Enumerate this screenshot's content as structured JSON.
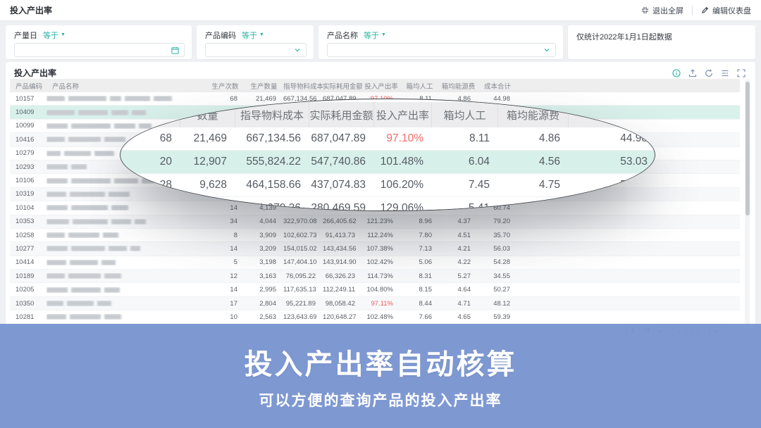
{
  "topbar": {
    "title": "投入产出率",
    "exit_fullscreen": "退出全屏",
    "edit_dashboard": "编辑仪表盘"
  },
  "filters": {
    "f1_label": "产量日",
    "f1_op": "等于",
    "f2_label": "产品编码",
    "f2_op": "等于",
    "f3_label": "产品名称",
    "f3_op": "等于",
    "note": "仅统计2022年1月1日起数据"
  },
  "panel": {
    "title": "投入产出率"
  },
  "table": {
    "headers": [
      "产品编码",
      "产品名称",
      "生产次数",
      "生产数量",
      "指导物料成本",
      "实际耗用金额",
      "投入产出率",
      "箱均人工",
      "箱均能源费",
      "成本合计",
      ""
    ],
    "rows": [
      {
        "code": "10157",
        "name_blocks": [
          26,
          54,
          16,
          36,
          26
        ],
        "cells": [
          "68",
          "21,469",
          "667,134.56",
          "687,047.89",
          "97.10%",
          "8.11",
          "4.86",
          "44.98"
        ],
        "ratio_red": true
      },
      {
        "code": "10409",
        "name_blocks": [
          40,
          42,
          24,
          20
        ],
        "cells": [
          "20",
          "12,907",
          "555,824.22",
          "547,740.86",
          "101.48%",
          "6.04",
          "4.56",
          "53.03"
        ],
        "selected": true
      },
      {
        "code": "10099",
        "name_blocks": [
          30,
          56,
          30,
          18
        ],
        "cells": [
          "28",
          "9,628",
          "464,158.66",
          "437,074.83",
          "106.20%",
          "7.45",
          "4.75",
          "57.60"
        ]
      },
      {
        "code": "10416",
        "name_blocks": [
          26,
          46,
          30
        ],
        "cells": [
          "",
          "4,163",
          "361,979.36",
          "280,469.59",
          "129.06%",
          "5.41",
          "",
          ""
        ]
      },
      {
        "code": "10279",
        "name_blocks": [
          20,
          38,
          28
        ],
        "cells": [
          "",
          "",
          "",
          "",
          "",
          "",
          "",
          ""
        ]
      },
      {
        "code": "10293",
        "name_blocks": [
          30,
          22
        ],
        "cells": [
          "",
          "",
          "",
          "",
          "",
          "",
          "",
          ""
        ]
      },
      {
        "code": "10106",
        "name_blocks": [
          30,
          56,
          34,
          18
        ],
        "cells": [
          "",
          "",
          "",
          "",
          "",
          "",
          "",
          ""
        ]
      },
      {
        "code": "10319",
        "name_blocks": [
          28,
          50,
          30
        ],
        "cells": [
          "",
          "",
          "",
          "",
          "",
          "",
          "",
          ""
        ]
      },
      {
        "code": "10104",
        "name_blocks": [
          30,
          52,
          24
        ],
        "cells": [
          "14",
          "4,139",
          "",
          "",
          "",
          "",
          "",
          "60.74"
        ]
      },
      {
        "code": "10353",
        "name_blocks": [
          32,
          50,
          28,
          16
        ],
        "cells": [
          "34",
          "4,044",
          "322,970.08",
          "266,405.62",
          "121.23%",
          "8.96",
          "4.37",
          "79.20"
        ]
      },
      {
        "code": "10258",
        "name_blocks": [
          26,
          44,
          22
        ],
        "cells": [
          "8",
          "3,909",
          "102,602.73",
          "91,413.73",
          "112.24%",
          "7.80",
          "4.51",
          "35.70"
        ]
      },
      {
        "code": "10277",
        "name_blocks": [
          30,
          48,
          26,
          14
        ],
        "cells": [
          "14",
          "3,209",
          "154,015.02",
          "143,434.56",
          "107.38%",
          "7.13",
          "4.21",
          "56.03"
        ]
      },
      {
        "code": "10414",
        "name_blocks": [
          28,
          40,
          20
        ],
        "cells": [
          "5",
          "3,198",
          "147,404.10",
          "143,914.90",
          "102.42%",
          "5.06",
          "4.22",
          "54.28"
        ]
      },
      {
        "code": "10189",
        "name_blocks": [
          26,
          46,
          24
        ],
        "cells": [
          "12",
          "3,163",
          "76,095.22",
          "66,326.23",
          "114.73%",
          "8.31",
          "5.27",
          "34.55"
        ]
      },
      {
        "code": "10205",
        "name_blocks": [
          30,
          42,
          22
        ],
        "cells": [
          "14",
          "2,995",
          "117,635.13",
          "112,249.11",
          "104.80%",
          "8.15",
          "4.64",
          "50.27"
        ]
      },
      {
        "code": "10350",
        "name_blocks": [
          24,
          38,
          20
        ],
        "cells": [
          "17",
          "2,804",
          "95,221.89",
          "98,058.42",
          "97.11%",
          "8.44",
          "4.71",
          "48.12"
        ],
        "ratio_red": true
      },
      {
        "code": "10281",
        "name_blocks": [
          28,
          44,
          24
        ],
        "cells": [
          "10",
          "2,563",
          "123,643.69",
          "120,648.27",
          "102.48%",
          "7.66",
          "4.65",
          "59.39"
        ]
      }
    ]
  },
  "lens": {
    "headers": [
      "",
      "数量",
      "指导物料成本",
      "实际耗用金额",
      "投入产出率",
      "箱均人工",
      "箱均能源费",
      ""
    ],
    "rows": [
      {
        "cells": [
          "68",
          "21,469",
          "667,134.56",
          "687,047.89",
          "97.10%",
          "8.11",
          "4.86",
          "44.98"
        ],
        "ratio_red": true
      },
      {
        "cells": [
          "20",
          "12,907",
          "555,824.22",
          "547,740.86",
          "101.48%",
          "6.04",
          "4.56",
          "53.03"
        ],
        "selected": true
      },
      {
        "cells": [
          "28",
          "9,628",
          "464,158.66",
          "437,074.83",
          "106.20%",
          "7.45",
          "4.75",
          "57.60"
        ]
      },
      {
        "cells": [
          "",
          "4,163",
          "361,979.36",
          "280,469.59",
          "129.06%",
          "5.41",
          "",
          ""
        ]
      }
    ]
  },
  "pagination": {
    "current": "1",
    "total": "/2"
  },
  "banner": {
    "title": "投入产出率自动核算",
    "subtitle": "可以方便的查询产品的投入产出率"
  },
  "colors": {
    "accent_teal": "#2bb3a3",
    "selected_row": "#d9f0eb",
    "ratio_red": "#f05b5b",
    "banner_blue": "#7792d0"
  }
}
